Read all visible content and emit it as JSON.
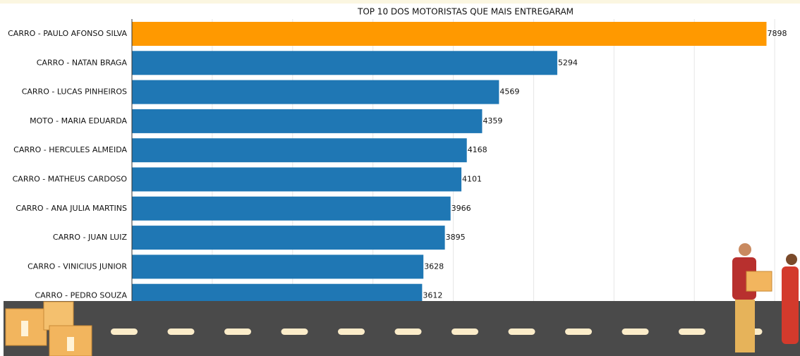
{
  "chart_data": {
    "type": "barh",
    "title": "TOP 10 DOS MOTORISTAS QUE MAIS ENTREGARAM",
    "categories": [
      "CARRO - PAULO AFONSO SILVA",
      "CARRO - NATAN BRAGA",
      "CARRO - LUCAS PINHEIROS",
      "MOTO - MARIA EDUARDA",
      "CARRO - HERCULES ALMEIDA",
      "CARRO - MATHEUS CARDOSO",
      "CARRO - ANA JULIA MARTINS",
      "CARRO - JUAN LUIZ",
      "CARRO - VINICIUS JUNIOR",
      "CARRO - PEDRO SOUZA"
    ],
    "values": [
      7898,
      5294,
      4569,
      4359,
      4168,
      4101,
      3966,
      3895,
      3628,
      3612
    ],
    "colors": [
      "#ff9900",
      "#1f77b4",
      "#1f77b4",
      "#1f77b4",
      "#1f77b4",
      "#1f77b4",
      "#1f77b4",
      "#1f77b4",
      "#1f77b4",
      "#1f77b4"
    ],
    "xlim": [
      0,
      8280
    ],
    "xticks": [
      0,
      1000,
      2000,
      3000,
      4000,
      5000,
      6000,
      7000,
      8000
    ],
    "grid": true
  }
}
